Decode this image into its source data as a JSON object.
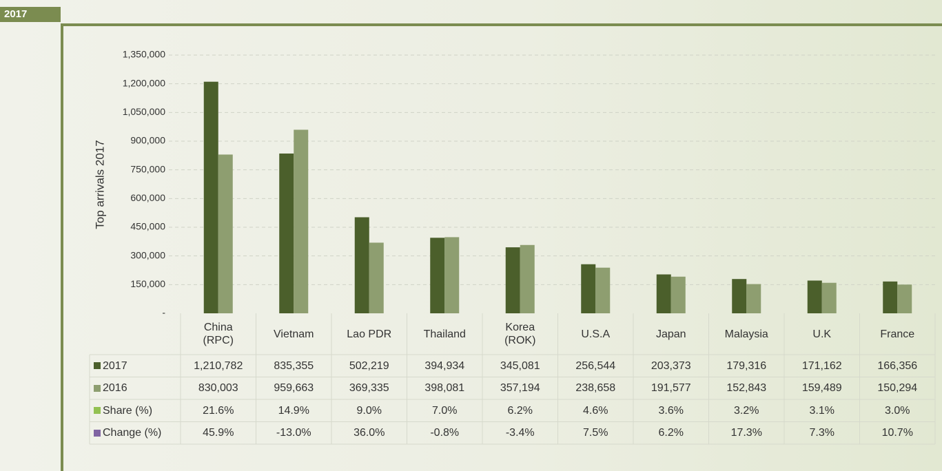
{
  "header": {
    "badge": "2017"
  },
  "chart_data": {
    "type": "bar",
    "ylabel": "Top arrivals 2017",
    "categories": [
      "China\n(RPC)",
      "Vietnam",
      "Lao PDR",
      "Thailand",
      "Korea\n(ROK)",
      "U.S.A",
      "Japan",
      "Malaysia",
      "U.K",
      "France"
    ],
    "series": [
      {
        "name": "2017",
        "color": "#4b5f2b",
        "values": [
          1210782,
          835355,
          502219,
          394934,
          345081,
          256544,
          203373,
          179316,
          171162,
          166356
        ],
        "value_labels": [
          "1,210,782",
          "835,355",
          "502,219",
          "394,934",
          "345,081",
          "256,544",
          "203,373",
          "179,316",
          "171,162",
          "166,356"
        ]
      },
      {
        "name": "2016",
        "color": "#8e9e70",
        "values": [
          830003,
          959663,
          369335,
          398081,
          357194,
          238658,
          191577,
          152843,
          159489,
          150294
        ],
        "value_labels": [
          "830,003",
          "959,663",
          "369,335",
          "398,081",
          "357,194",
          "238,658",
          "191,577",
          "152,843",
          "159,489",
          "150,294"
        ]
      }
    ],
    "table_rows": [
      {
        "name": "Share (%)",
        "color": "#93c152",
        "values": [
          21.6,
          14.9,
          9.0,
          7.0,
          6.2,
          4.6,
          3.6,
          3.2,
          3.1,
          3.0
        ],
        "value_labels": [
          "21.6%",
          "14.9%",
          "9.0%",
          "7.0%",
          "6.2%",
          "4.6%",
          "3.6%",
          "3.2%",
          "3.1%",
          "3.0%"
        ]
      },
      {
        "name": "Change (%)",
        "color": "#8064a2",
        "values": [
          45.9,
          -13.0,
          36.0,
          -0.8,
          -3.4,
          7.5,
          6.2,
          17.3,
          7.3,
          10.7
        ],
        "value_labels": [
          "45.9%",
          "-13.0%",
          "36.0%",
          "-0.8%",
          "-3.4%",
          "7.5%",
          "6.2%",
          "17.3%",
          "7.3%",
          "10.7%"
        ]
      }
    ],
    "ylim": [
      0,
      1350000
    ],
    "yticks": [
      {
        "value": 0,
        "label": "-"
      },
      {
        "value": 150000,
        "label": "150,000"
      },
      {
        "value": 300000,
        "label": "300,000"
      },
      {
        "value": 450000,
        "label": "450,000"
      },
      {
        "value": 600000,
        "label": "600,000"
      },
      {
        "value": 750000,
        "label": "750,000"
      },
      {
        "value": 900000,
        "label": "900,000"
      },
      {
        "value": 1050000,
        "label": "1,050,000"
      },
      {
        "value": 1200000,
        "label": "1,200,000"
      },
      {
        "value": 1350000,
        "label": "1,350,000"
      }
    ],
    "grid": true
  }
}
